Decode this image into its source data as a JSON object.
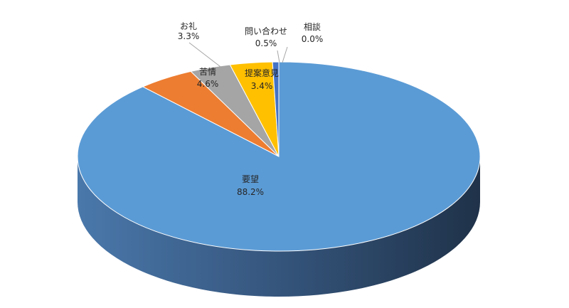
{
  "chart_data": {
    "type": "pie",
    "style": "3d",
    "categories": [
      "要望",
      "苦情",
      "お礼",
      "提案意見",
      "問い合わせ",
      "相談"
    ],
    "values": [
      88.2,
      4.6,
      3.3,
      3.4,
      0.5,
      0.0
    ],
    "value_labels": [
      "88.2%",
      "4.6%",
      "3.3%",
      "3.4%",
      "0.5%",
      "0.0%"
    ],
    "colors": [
      "#5b9bd5",
      "#ed7d31",
      "#a5a5a5",
      "#ffc000",
      "#4472c4",
      "#70ad47"
    ],
    "legend": "none"
  }
}
